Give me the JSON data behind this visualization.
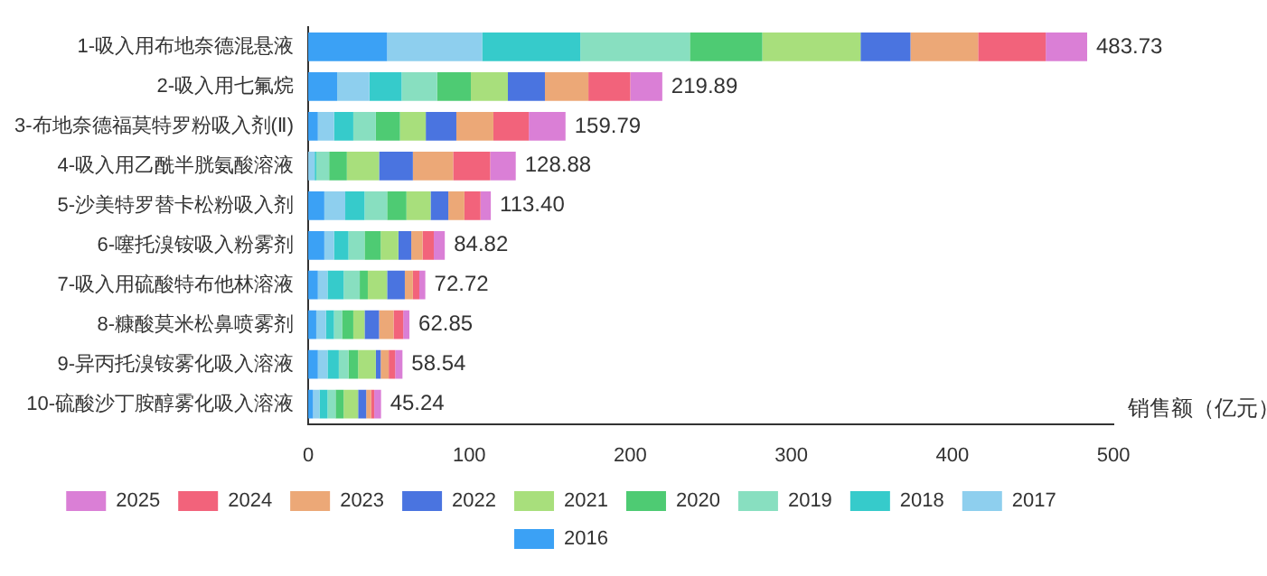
{
  "chart_data": {
    "type": "bar",
    "orientation": "horizontal",
    "stacked": true,
    "xlabel": "销售额（亿元）",
    "categories": [
      "1-吸入用布地奈德混悬液",
      "2-吸入用七氟烷",
      "3-布地奈德福莫特罗粉吸入剂(Ⅱ)",
      "4-吸入用乙酰半胱氨酸溶液",
      "5-沙美特罗替卡松粉吸入剂",
      "6-噻托溴铵吸入粉雾剂",
      "7-吸入用硫酸特布他林溶液",
      "8-糠酸莫米松鼻喷雾剂",
      "9-异丙托溴铵雾化吸入溶液",
      "10-硫酸沙丁胺醇雾化吸入溶液"
    ],
    "series": [
      {
        "name": "2016",
        "color": "#3ba1f5",
        "values": [
          49,
          18,
          6,
          0,
          10,
          10,
          6,
          5,
          6,
          3
        ]
      },
      {
        "name": "2017",
        "color": "#8ecfee",
        "values": [
          59,
          20,
          10,
          4,
          13,
          6,
          6,
          6,
          6,
          4
        ]
      },
      {
        "name": "2018",
        "color": "#36cbcb",
        "values": [
          61,
          20,
          12,
          1,
          12,
          9,
          10,
          5,
          7,
          5
        ]
      },
      {
        "name": "2019",
        "color": "#88dfc0",
        "values": [
          68,
          22,
          14,
          8,
          14,
          10,
          10,
          5,
          6,
          5
        ]
      },
      {
        "name": "2020",
        "color": "#4ecb73",
        "values": [
          45,
          21,
          15,
          11,
          12,
          10,
          5,
          7,
          6,
          5
        ]
      },
      {
        "name": "2021",
        "color": "#a8df7c",
        "values": [
          61,
          23,
          16,
          20,
          15,
          11,
          12,
          7,
          11,
          9
        ]
      },
      {
        "name": "2022",
        "color": "#4a74e0",
        "values": [
          31,
          23,
          19,
          21,
          11,
          8,
          11,
          9,
          3,
          5
        ]
      },
      {
        "name": "2023",
        "color": "#eca877",
        "values": [
          42,
          27,
          23,
          25,
          10,
          7,
          5,
          9,
          5,
          3
        ]
      },
      {
        "name": "2024",
        "color": "#f2637b",
        "values": [
          42,
          26,
          22,
          23,
          10,
          7,
          4,
          6,
          4,
          2
        ]
      },
      {
        "name": "2025",
        "color": "#da7fd6",
        "values": [
          25.73,
          19.89,
          22.79,
          15.88,
          6.4,
          6.82,
          3.72,
          3.85,
          4.54,
          4.24
        ]
      }
    ],
    "totals": [
      "483.73",
      "219.89",
      "159.79",
      "128.88",
      "113.40",
      "84.82",
      "72.72",
      "62.85",
      "58.54",
      "45.24"
    ],
    "xlim": [
      0,
      500
    ],
    "xticks": [
      0,
      100,
      200,
      300,
      400,
      500
    ],
    "grid": false,
    "legend": "bottom"
  }
}
